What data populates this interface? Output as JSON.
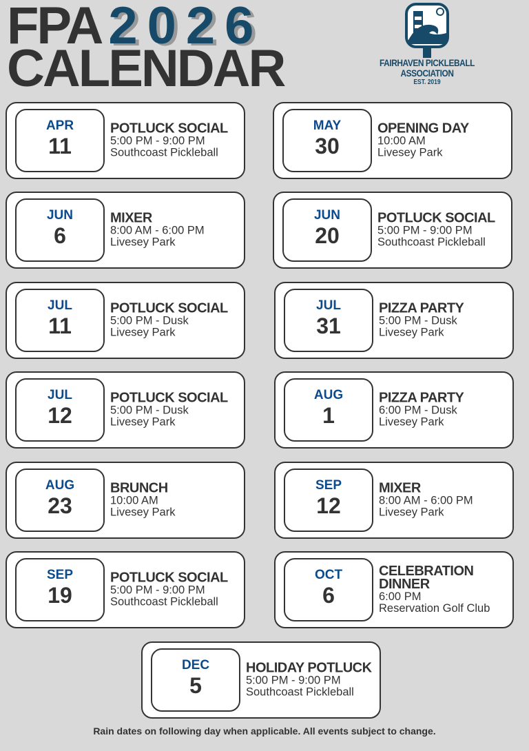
{
  "header": {
    "title_prefix": "FPA",
    "year": "2026",
    "title_line2": "CALENDAR"
  },
  "logo": {
    "line1": "FAIRHAVEN PICKLEBALL",
    "line2": "ASSOCIATION",
    "line3": "EST. 2019",
    "color": "#174a69"
  },
  "colors": {
    "background": "#d9d9d9",
    "month": "#0b4a8c",
    "text": "#333333"
  },
  "events": [
    {
      "month": "APR",
      "day": "11",
      "name": "POTLUCK SOCIAL",
      "time": "5:00 PM - 9:00 PM",
      "location": "Southcoast Pickleball"
    },
    {
      "month": "MAY",
      "day": "30",
      "name": "OPENING DAY",
      "time": "10:00 AM",
      "location": "Livesey Park"
    },
    {
      "month": "JUN",
      "day": "6",
      "name": "MIXER",
      "time": "8:00 AM - 6:00 PM",
      "location": "Livesey Park"
    },
    {
      "month": "JUN",
      "day": "20",
      "name": "POTLUCK SOCIAL",
      "time": "5:00 PM - 9:00 PM",
      "location": "Southcoast Pickleball"
    },
    {
      "month": "JUL",
      "day": "11",
      "name": "POTLUCK SOCIAL",
      "time": "5:00 PM - Dusk",
      "location": "Livesey Park"
    },
    {
      "month": "JUL",
      "day": "31",
      "name": "PIZZA PARTY",
      "time": "5:00 PM - Dusk",
      "location": "Livesey Park"
    },
    {
      "month": "JUL",
      "day": "12",
      "name": "POTLUCK SOCIAL",
      "time": "5:00 PM - Dusk",
      "location": "Livesey Park"
    },
    {
      "month": "AUG",
      "day": "1",
      "name": "PIZZA PARTY",
      "time": "6:00 PM - Dusk",
      "location": "Livesey Park"
    },
    {
      "month": "AUG",
      "day": "23",
      "name": "BRUNCH",
      "time": "10:00 AM",
      "location": "Livesey Park"
    },
    {
      "month": "SEP",
      "day": "12",
      "name": "MIXER",
      "time": "8:00 AM - 6:00 PM",
      "location": "Livesey Park"
    },
    {
      "month": "SEP",
      "day": "19",
      "name": "POTLUCK SOCIAL",
      "time": "5:00 PM - 9:00 PM",
      "location": "Southcoast Pickleball"
    },
    {
      "month": "OCT",
      "day": "6",
      "name": "CELEBRATION DINNER",
      "time": "6:00 PM",
      "location": "Reservation Golf Club"
    },
    {
      "month": "DEC",
      "day": "5",
      "name": "HOLIDAY POTLUCK",
      "time": "5:00 PM - 9:00 PM",
      "location": "Southcoast Pickleball"
    }
  ],
  "footer": "Rain dates on following day when applicable. All events subject to change."
}
